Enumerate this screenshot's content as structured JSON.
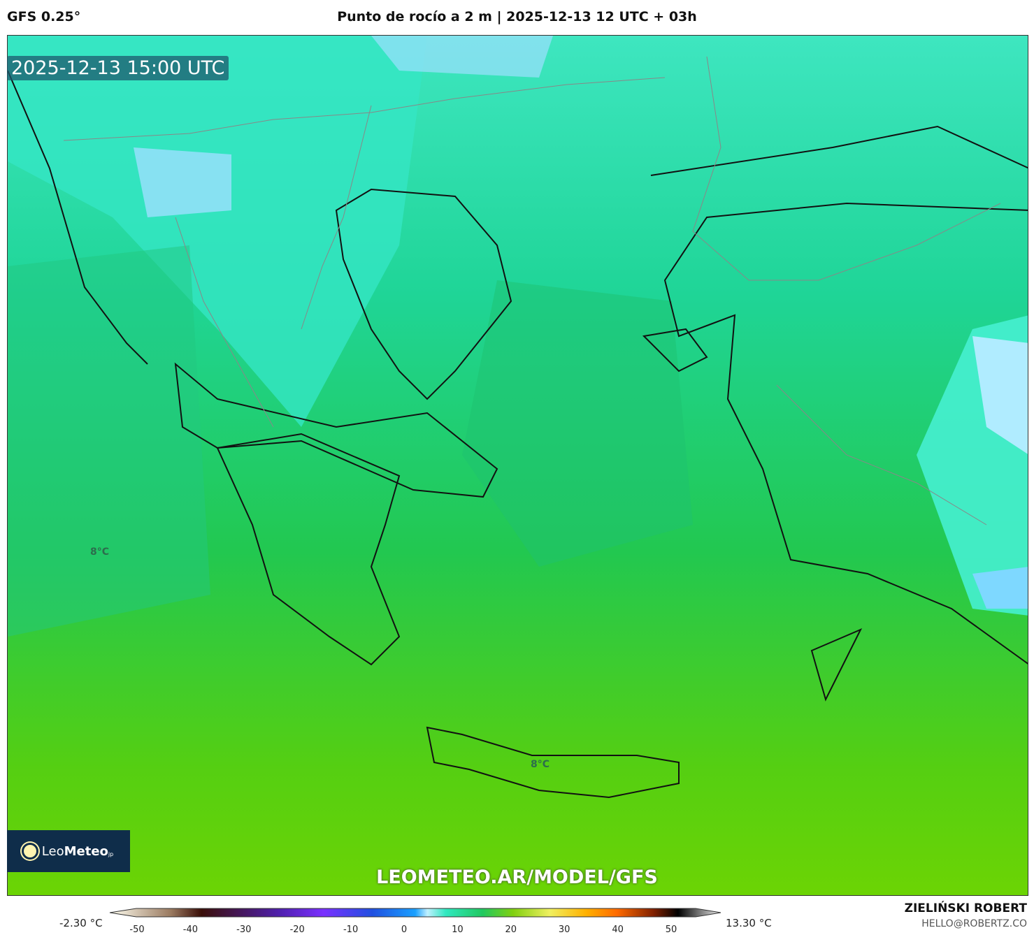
{
  "header": {
    "model": "GFS 0.25°",
    "title": "Punto de rocío a 2 m | 2025-12-13 12 UTC + 03h"
  },
  "map": {
    "valid_time": "2025-12-13 15:00 UTC",
    "labels": [
      "8°C",
      "8°C"
    ],
    "watermark": "LEOMETEO.AR/MODEL/GFS"
  },
  "logo": {
    "text_light": "Leo",
    "text_bold": "Meteo",
    "suffix": "jp"
  },
  "colorbar": {
    "min_label": "-2.30 °C",
    "max_label": "13.30 °C",
    "ticks": [
      "-50",
      "-40",
      "-30",
      "-20",
      "-10",
      "0",
      "10",
      "20",
      "30",
      "40",
      "50"
    ],
    "units": "°C"
  },
  "credits": {
    "author": "ZIELIŃSKI ROBERT",
    "email": "HELLO@ROBERTZ.CO"
  }
}
